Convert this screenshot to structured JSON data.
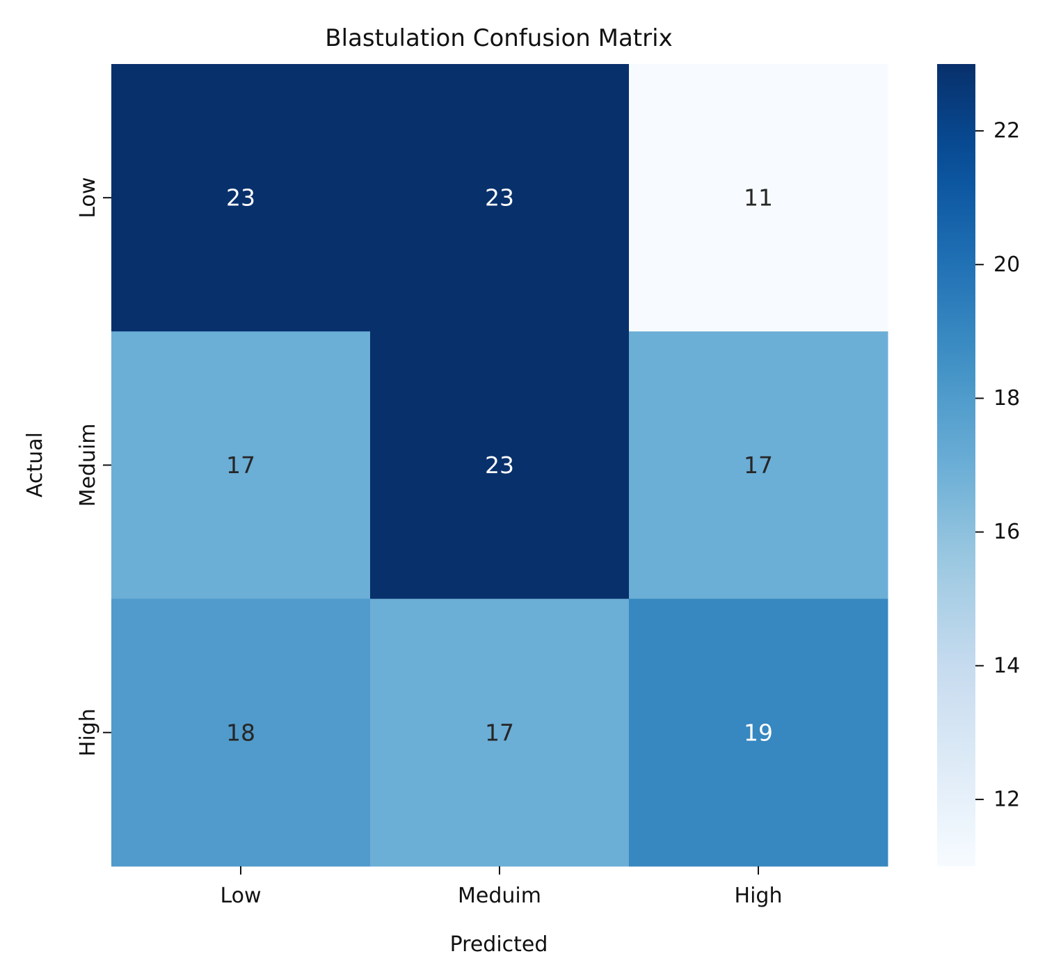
{
  "chart_data": {
    "type": "heatmap",
    "title": "Blastulation Confusion Matrix",
    "xlabel": "Predicted",
    "ylabel": "Actual",
    "x_categories": [
      "Low",
      "Meduim",
      "High"
    ],
    "y_categories": [
      "Low",
      "Meduim",
      "High"
    ],
    "values": [
      [
        23,
        23,
        11
      ],
      [
        17,
        23,
        17
      ],
      [
        18,
        17,
        19
      ]
    ],
    "colormap": "Blues",
    "colorbar": {
      "range": [
        11,
        23
      ],
      "ticks": [
        "12",
        "14",
        "16",
        "18",
        "20",
        "22"
      ]
    },
    "annotations": true,
    "grid": false
  }
}
